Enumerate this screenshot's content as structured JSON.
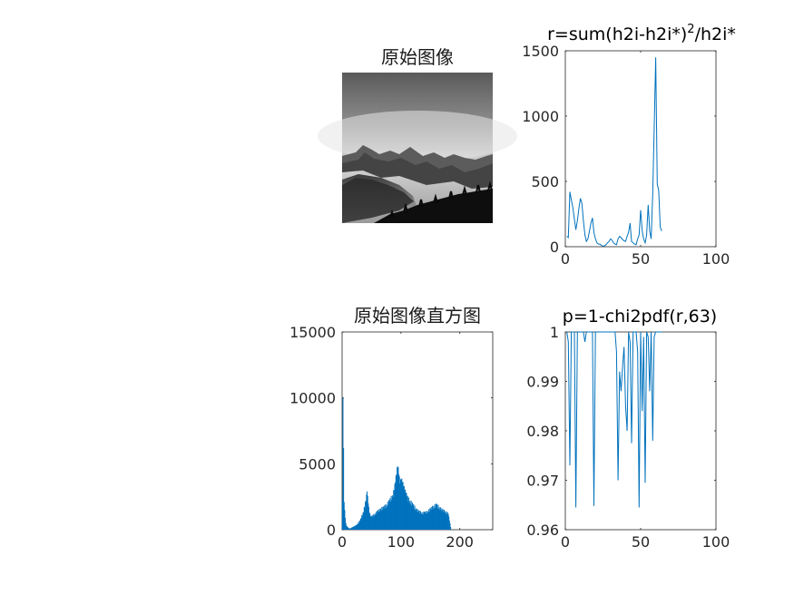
{
  "colors": {
    "series": "#0072BD",
    "axis": "#262626",
    "background": "#ffffff"
  },
  "chart_data": [
    {
      "type": "image",
      "title": "原始图像",
      "description": "grayscale mountain landscape"
    },
    {
      "type": "line",
      "title_main": "r=sum(h2i-h2i*)",
      "title_sup": "2",
      "title_tail": "/h2i*",
      "xlim": [
        0,
        100
      ],
      "ylim": [
        0,
        1500
      ],
      "xticks": [
        0,
        50,
        100
      ],
      "yticks": [
        0,
        500,
        1000,
        1500
      ],
      "x": [
        1,
        2,
        3,
        4,
        5,
        6,
        7,
        8,
        9,
        10,
        11,
        12,
        13,
        14,
        15,
        16,
        17,
        18,
        19,
        20,
        21,
        22,
        23,
        24,
        25,
        26,
        27,
        28,
        29,
        30,
        31,
        32,
        33,
        34,
        35,
        36,
        37,
        38,
        39,
        40,
        41,
        42,
        43,
        44,
        45,
        46,
        47,
        48,
        49,
        50,
        51,
        52,
        53,
        54,
        55,
        56,
        57,
        58,
        59,
        60,
        61,
        62,
        63,
        64
      ],
      "y": [
        80,
        70,
        420,
        360,
        300,
        210,
        130,
        200,
        290,
        370,
        330,
        200,
        90,
        40,
        60,
        120,
        180,
        220,
        110,
        60,
        30,
        20,
        20,
        10,
        5,
        5,
        15,
        30,
        40,
        60,
        50,
        30,
        20,
        15,
        60,
        80,
        70,
        55,
        45,
        40,
        80,
        110,
        180,
        40,
        30,
        20,
        15,
        60,
        90,
        280,
        120,
        60,
        30,
        90,
        320,
        120,
        60,
        400,
        900,
        1450,
        480,
        430,
        150,
        120
      ]
    },
    {
      "type": "bar",
      "title": "原始图像直方图",
      "xlim": [
        0,
        256
      ],
      "ylim": [
        0,
        15000
      ],
      "xticks": [
        0,
        100,
        200
      ],
      "yticks": [
        0,
        5000,
        10000,
        15000
      ],
      "bins": [
        0,
        1,
        2,
        3,
        4,
        5,
        6,
        7,
        8,
        9,
        10,
        11,
        12,
        13,
        14,
        15,
        20,
        25,
        30,
        35,
        40,
        42,
        44,
        46,
        48,
        50,
        55,
        60,
        65,
        70,
        75,
        80,
        85,
        88,
        90,
        92,
        94,
        96,
        98,
        100,
        102,
        104,
        106,
        108,
        110,
        115,
        120,
        125,
        130,
        135,
        140,
        145,
        150,
        155,
        160,
        165,
        170,
        175,
        180,
        182,
        184
      ],
      "values": [
        2200,
        10000,
        6200,
        2100,
        1500,
        900,
        500,
        300,
        250,
        200,
        150,
        120,
        100,
        100,
        100,
        150,
        250,
        400,
        700,
        1300,
        2200,
        2900,
        2000,
        1300,
        1000,
        1000,
        1200,
        1400,
        1600,
        1700,
        1900,
        2200,
        2600,
        3000,
        3600,
        4200,
        4800,
        4200,
        3500,
        3800,
        3600,
        3300,
        3000,
        2800,
        2500,
        2200,
        1900,
        1600,
        1400,
        1300,
        1300,
        1400,
        1600,
        1800,
        1900,
        1700,
        1500,
        1400,
        1200,
        700,
        200
      ]
    },
    {
      "type": "line",
      "title": "p=1-chi2pdf(r,63)",
      "xlim": [
        0,
        100
      ],
      "ylim": [
        0.96,
        1
      ],
      "xticks": [
        0,
        50,
        100
      ],
      "yticks": [
        0.96,
        0.97,
        0.98,
        0.99,
        1
      ],
      "x": [
        1,
        2,
        3,
        4,
        5,
        6,
        7,
        8,
        9,
        10,
        11,
        12,
        13,
        14,
        15,
        16,
        17,
        18,
        19,
        20,
        21,
        22,
        23,
        24,
        25,
        26,
        27,
        28,
        29,
        30,
        31,
        32,
        33,
        34,
        35,
        36,
        37,
        38,
        39,
        40,
        41,
        42,
        43,
        44,
        45,
        46,
        47,
        48,
        49,
        50,
        51,
        52,
        53,
        54,
        55,
        56,
        57,
        58,
        59,
        60,
        61,
        62,
        63,
        64
      ],
      "y": [
        1,
        0.998,
        0.973,
        1,
        1,
        1,
        0.9645,
        1,
        1,
        1,
        1,
        1,
        0.998,
        1,
        1,
        1,
        1,
        1,
        0.9648,
        1,
        1,
        1,
        1,
        1,
        1,
        1,
        1,
        1,
        1,
        1,
        1,
        1,
        1,
        0.996,
        0.97,
        0.992,
        0.988,
        0.993,
        0.997,
        0.985,
        0.98,
        1,
        0.998,
        0.9775,
        1,
        1,
        1,
        0.996,
        0.9645,
        1,
        0.984,
        0.999,
        0.9695,
        1,
        0.999,
        0.988,
        1,
        0.978,
        0.999,
        1,
        1,
        1,
        1,
        1
      ]
    }
  ]
}
